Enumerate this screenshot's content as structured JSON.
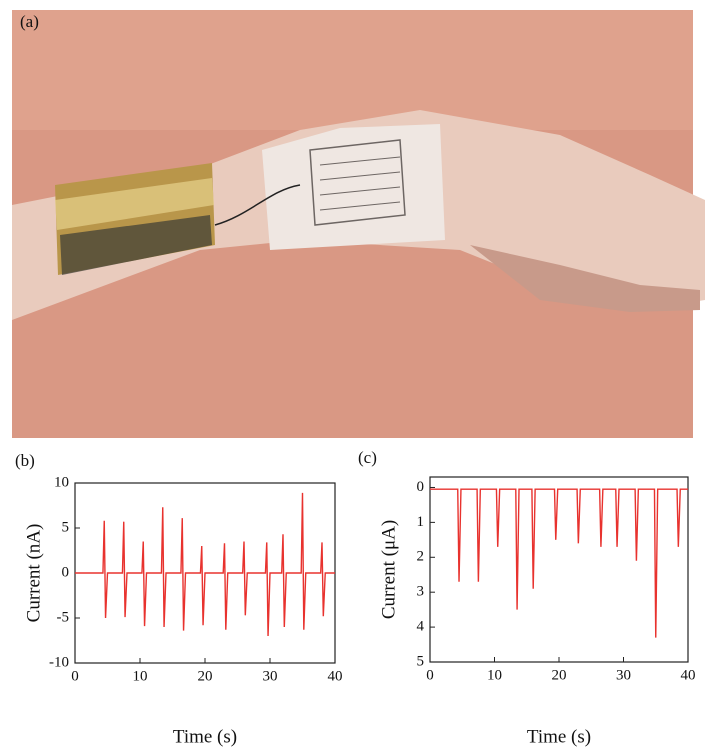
{
  "photo_label": "(a)",
  "chart_data": [
    {
      "type": "line",
      "panel_label": "(b)",
      "x_label": "Time (s)",
      "y_label": "Current (nA)",
      "xlim": [
        0,
        40
      ],
      "xticks": [
        0,
        10,
        20,
        30,
        40
      ],
      "ylim": [
        -10,
        10
      ],
      "yticks": [
        -10,
        -5,
        0,
        5,
        10
      ],
      "y_reversed": false,
      "x": [
        0,
        4.3,
        4.5,
        4.7,
        5,
        7.3,
        7.5,
        7.7,
        8,
        10.3,
        10.5,
        10.7,
        11,
        13.3,
        13.5,
        13.7,
        14,
        16.3,
        16.5,
        16.7,
        17,
        19.3,
        19.5,
        19.7,
        20,
        22.8,
        23,
        23.2,
        23.5,
        25.8,
        26,
        26.2,
        26.5,
        29.3,
        29.5,
        29.7,
        30,
        31.8,
        32,
        32.2,
        32.5,
        34.8,
        35,
        35.2,
        35.5,
        37.8,
        38,
        38.2,
        38.5,
        40
      ],
      "series": [
        {
          "color": "#e8322e",
          "values": [
            0,
            0,
            5.8,
            -5,
            0,
            0,
            5.7,
            -4.9,
            0,
            0,
            3.5,
            -5.9,
            0,
            0,
            7.3,
            -6,
            0,
            0,
            6.1,
            -6.4,
            0,
            0,
            3,
            -5.8,
            0,
            0,
            3.3,
            -6.3,
            0,
            0,
            3.5,
            -4.7,
            0,
            0,
            3.4,
            -7,
            0,
            0,
            4.3,
            -6,
            0,
            0,
            8.9,
            -6.3,
            0,
            0,
            3.4,
            -4.8,
            0,
            0
          ]
        }
      ]
    },
    {
      "type": "line",
      "panel_label": "(c)",
      "x_label": "Time (s)",
      "y_label": "Current (μA)",
      "xlim": [
        0,
        40
      ],
      "xticks": [
        0,
        10,
        20,
        30,
        40
      ],
      "ylim": [
        -0.3,
        5
      ],
      "yticks": [
        0,
        1,
        2,
        3,
        4,
        5
      ],
      "y_reversed": true,
      "x": [
        0,
        4.3,
        4.5,
        4.8,
        7.3,
        7.5,
        7.8,
        10.3,
        10.5,
        10.8,
        13.3,
        13.5,
        13.8,
        15.8,
        16,
        16.3,
        19.3,
        19.5,
        19.8,
        22.8,
        23,
        23.3,
        26.3,
        26.5,
        26.8,
        28.8,
        29,
        29.3,
        31.8,
        32,
        32.3,
        34.8,
        35,
        35.3,
        38.3,
        38.5,
        38.8,
        40
      ],
      "series": [
        {
          "color": "#e8322e",
          "values": [
            0.05,
            0.05,
            2.7,
            0.05,
            0.05,
            2.7,
            0.05,
            0.05,
            1.7,
            0.05,
            0.05,
            3.5,
            0.05,
            0.05,
            2.9,
            0.05,
            0.05,
            1.5,
            0.05,
            0.05,
            1.6,
            0.05,
            0.05,
            1.7,
            0.05,
            0.05,
            1.7,
            0.05,
            0.05,
            2.1,
            0.05,
            0.05,
            4.3,
            0.05,
            0.05,
            1.7,
            0.05,
            0.05
          ]
        }
      ]
    }
  ]
}
